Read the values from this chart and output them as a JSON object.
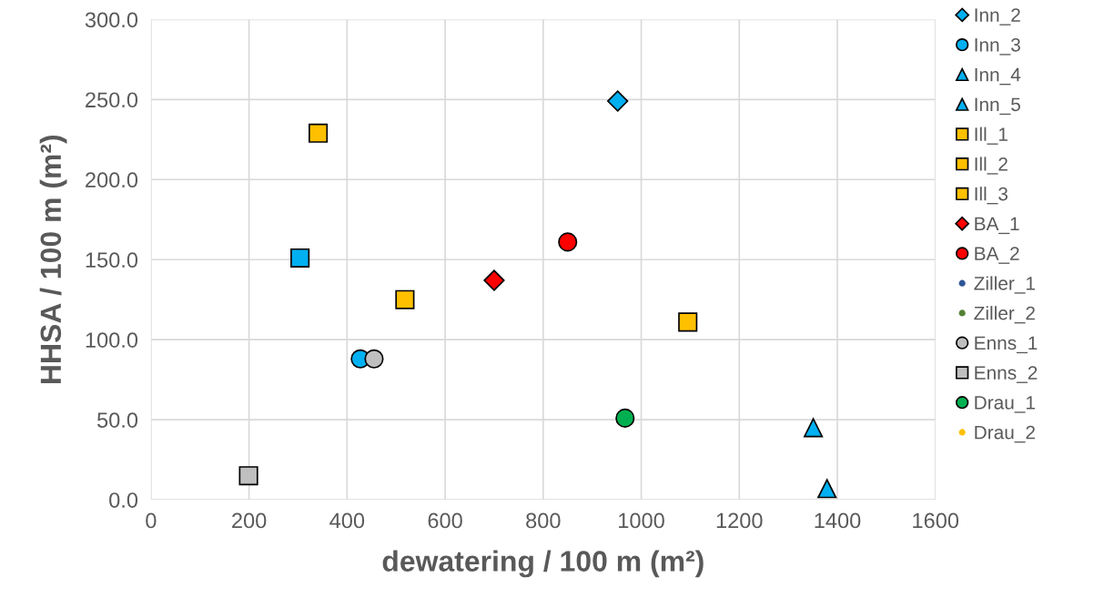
{
  "chart_data": {
    "type": "scatter",
    "xlabel": "dewatering / 100 m (m²)",
    "ylabel": "HHSA / 100 m (m²)",
    "xlim": [
      0,
      1600
    ],
    "xticks": [
      0,
      200,
      400,
      600,
      800,
      1000,
      1200,
      1400,
      1600
    ],
    "ylim": [
      0,
      300
    ],
    "yticks": [
      {
        "value": 0,
        "label": "0.0"
      },
      {
        "value": 50,
        "label": "50.0"
      },
      {
        "value": 100,
        "label": "100.0"
      },
      {
        "value": 150,
        "label": "150.0"
      },
      {
        "value": 200,
        "label": "200.0"
      },
      {
        "value": 250,
        "label": "250.0"
      },
      {
        "value": 300,
        "label": "300.0"
      }
    ],
    "grid": true,
    "legend": "right",
    "series": [
      {
        "color": "#00b0f0",
        "marker": "square",
        "x": [
          304
        ],
        "values": [
          151
        ]
      },
      {
        "name": "Inn_2",
        "color": "#00b0f0",
        "marker": "diamond",
        "x": [
          952
        ],
        "values": [
          249
        ]
      },
      {
        "name": "Inn_3",
        "color": "#00b0f0",
        "marker": "circle",
        "x": [
          427
        ],
        "values": [
          88
        ]
      },
      {
        "name": "Inn_4",
        "color": "#00b0f0",
        "marker": "triangle",
        "x": [
          1351
        ],
        "values": [
          45
        ]
      },
      {
        "name": "Inn_5",
        "color": "#00b0f0",
        "marker": "triangle",
        "x": [
          1379
        ],
        "values": [
          7
        ]
      },
      {
        "name": "Ill_1",
        "color": "#ffc000",
        "marker": "square",
        "x": [
          341
        ],
        "values": [
          229
        ]
      },
      {
        "name": "Ill_2",
        "color": "#ffc000",
        "marker": "square",
        "x": [
          518
        ],
        "values": [
          125
        ]
      },
      {
        "name": "Ill_3",
        "color": "#ffc000",
        "marker": "square",
        "x": [
          1095
        ],
        "values": [
          111
        ]
      },
      {
        "name": "BA_1",
        "color": "#ff0000",
        "marker": "diamond",
        "x": [
          700
        ],
        "values": [
          137
        ]
      },
      {
        "name": "BA_2",
        "color": "#ff0000",
        "marker": "circle",
        "x": [
          850
        ],
        "values": [
          161
        ]
      },
      {
        "name": "Ziller_1",
        "color": "#2f5597",
        "marker": "dot"
      },
      {
        "name": "Ziller_2",
        "color": "#548235",
        "marker": "dot"
      },
      {
        "name": "Enns_1",
        "color": "#bfbfbf",
        "marker": "circle",
        "x": [
          455
        ],
        "values": [
          88
        ]
      },
      {
        "name": "Enns_2",
        "color": "#bfbfbf",
        "marker": "square",
        "x": [
          199
        ],
        "values": [
          15
        ]
      },
      {
        "name": "Drau_1",
        "color": "#00b050",
        "marker": "circle",
        "x": [
          967
        ],
        "values": [
          51
        ]
      },
      {
        "name": "Drau_2",
        "color": "#ffc000",
        "marker": "dot"
      }
    ]
  }
}
